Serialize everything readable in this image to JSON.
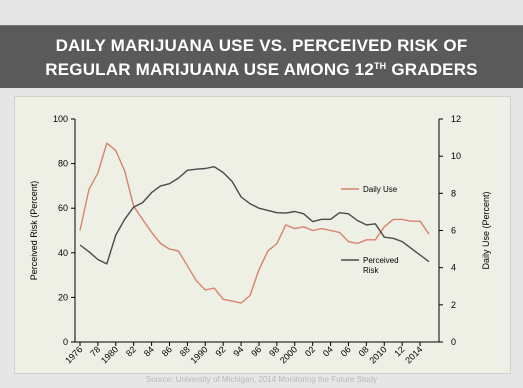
{
  "title": {
    "line1": "DAILY MARIJUANA USE VS. PERCEIVED RISK OF",
    "line2_main": "REGULAR MARIJUANA USE AMONG 12",
    "line2_sup": "TH",
    "line2_end": " GRADERS"
  },
  "source": "Source: University of Michigan, 2014 Monitoring the Future Study",
  "chart_data": {
    "type": "line",
    "x": [
      1976,
      1977,
      1978,
      1979,
      1980,
      1981,
      1982,
      1983,
      1984,
      1985,
      1986,
      1987,
      1988,
      1989,
      1990,
      1991,
      1992,
      1993,
      1994,
      1995,
      1996,
      1997,
      1998,
      1999,
      2000,
      2001,
      2002,
      2003,
      2004,
      2005,
      2006,
      2007,
      2008,
      2009,
      2010,
      2011,
      2012,
      2013,
      2014,
      2015
    ],
    "x_tick_labels": [
      "1976",
      "78",
      "1980",
      "82",
      "84",
      "86",
      "88",
      "1990",
      "92",
      "94",
      "96",
      "98",
      "2000",
      "02",
      "04",
      "06",
      "08",
      "2010",
      "12",
      "2014"
    ],
    "ylabel_left": "Perceived Risk (Percent)",
    "ylabel_right": "Daily Use (Percent)",
    "ylim_left": [
      0,
      100
    ],
    "yticks_left": [
      0,
      20,
      40,
      60,
      80,
      100
    ],
    "ylim_right": [
      0,
      12
    ],
    "yticks_right": [
      0,
      2,
      4,
      6,
      8,
      10,
      12
    ],
    "grid": false,
    "series": [
      {
        "name": "Daily Use",
        "axis": "right",
        "color": "#d9826a",
        "values": [
          6.0,
          8.2,
          9.1,
          10.7,
          10.3,
          9.2,
          7.3,
          6.6,
          5.9,
          5.3,
          5.0,
          4.9,
          4.1,
          3.3,
          2.8,
          2.9,
          2.3,
          2.2,
          2.1,
          2.5,
          3.9,
          4.9,
          5.3,
          6.3,
          6.1,
          6.2,
          6.0,
          6.1,
          6.0,
          5.9,
          5.4,
          5.3,
          5.5,
          5.5,
          6.2,
          6.6,
          6.6,
          6.5,
          6.5,
          5.8
        ]
      },
      {
        "name": "Perceived Risk",
        "axis": "left",
        "color": "#4a4a4a",
        "values": [
          43.5,
          40.5,
          37.0,
          35.0,
          48.0,
          55.0,
          60.5,
          62.5,
          67.0,
          70.0,
          71.0,
          73.5,
          77.0,
          77.5,
          77.8,
          78.6,
          76.0,
          72.0,
          65.0,
          62.0,
          60.0,
          59.0,
          58.0,
          57.8,
          58.5,
          57.5,
          54.0,
          55.0,
          55.0,
          58.0,
          57.5,
          54.5,
          52.5,
          53.0,
          47.0,
          46.5,
          45.0,
          42.0,
          39.0,
          36.0
        ]
      }
    ],
    "legend": [
      "Daily Use",
      "Perceived\nRisk"
    ]
  }
}
